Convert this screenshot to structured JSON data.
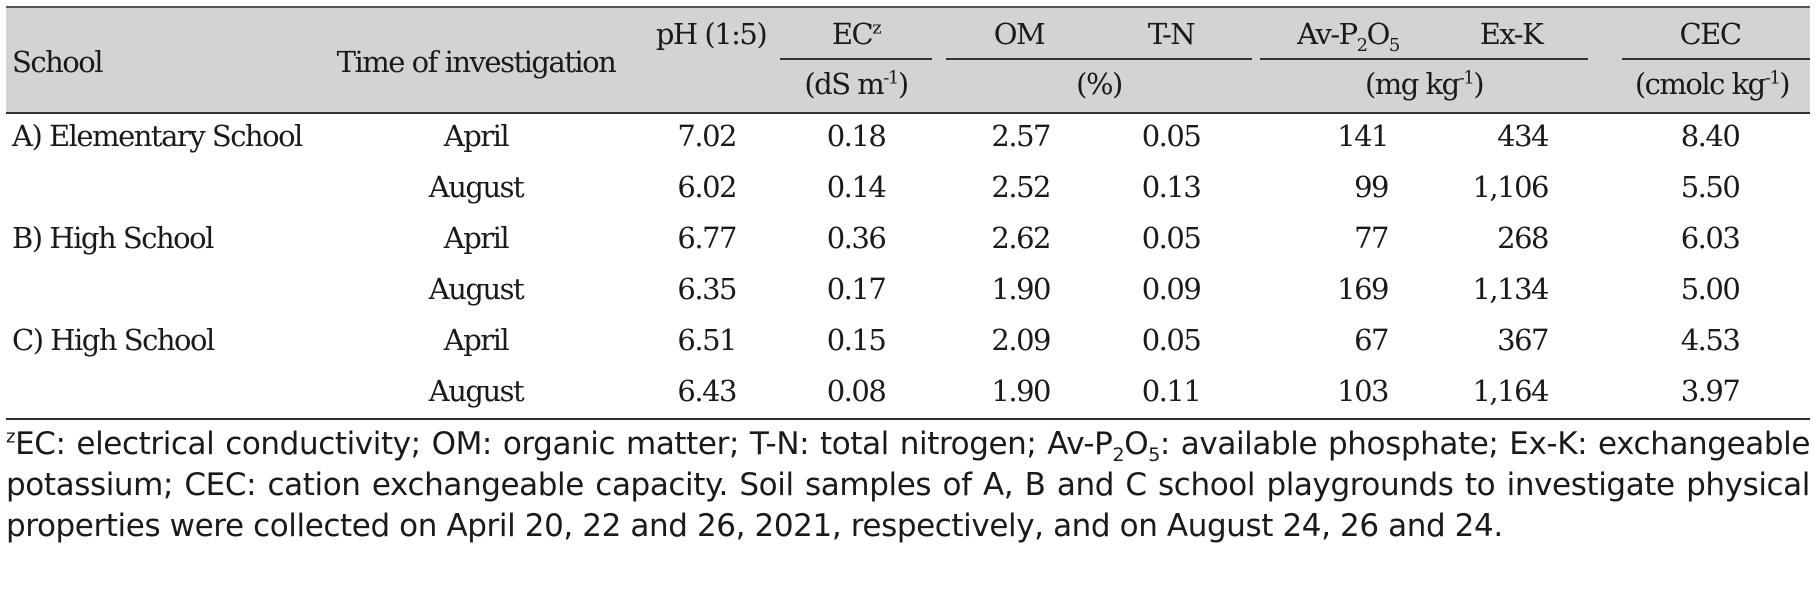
{
  "table": {
    "headers": {
      "school": "School",
      "time": "Time of investigation",
      "ph": "pH (1:5)",
      "ec_name": "EC",
      "ec_mark": "z",
      "ec_unit_a": "(dS m",
      "ec_unit_exp": "-1",
      "ec_unit_b": ")",
      "om": "OM",
      "tn": "T-N",
      "pct_unit": "(%)",
      "av_a": "Av-P",
      "av_sub1": "2",
      "av_b": "O",
      "av_sub2": "5",
      "exk": "Ex-K",
      "mg_unit_a": "(mg kg",
      "mg_unit_exp": "-1",
      "mg_unit_b": ")",
      "cec": "CEC",
      "cmol_unit_a": "(cmolc kg",
      "cmol_unit_exp": "-1",
      "cmol_unit_b": ")"
    },
    "rows": [
      {
        "school": "A) Elementary School",
        "time": "April",
        "ph": "7.02",
        "ec": "0.18",
        "om": "2.57",
        "tn": "0.05",
        "av": "141",
        "exk": "434",
        "cec": "8.40"
      },
      {
        "school": "",
        "time": "August",
        "ph": "6.02",
        "ec": "0.14",
        "om": "2.52",
        "tn": "0.13",
        "av": "99",
        "exk": "1,106",
        "cec": "5.50"
      },
      {
        "school": "B) High School",
        "time": "April",
        "ph": "6.77",
        "ec": "0.36",
        "om": "2.62",
        "tn": "0.05",
        "av": "77",
        "exk": "268",
        "cec": "6.03"
      },
      {
        "school": "",
        "time": "August",
        "ph": "6.35",
        "ec": "0.17",
        "om": "1.90",
        "tn": "0.09",
        "av": "169",
        "exk": "1,134",
        "cec": "5.00"
      },
      {
        "school": "C) High School",
        "time": "April",
        "ph": "6.51",
        "ec": "0.15",
        "om": "2.09",
        "tn": "0.05",
        "av": "67",
        "exk": "367",
        "cec": "4.53"
      },
      {
        "school": "",
        "time": "August",
        "ph": "6.43",
        "ec": "0.08",
        "om": "1.90",
        "tn": "0.11",
        "av": "103",
        "exk": "1,164",
        "cec": "3.97"
      }
    ]
  },
  "footnote": {
    "mark": "z",
    "text_a": "EC: electrical conductivity; OM: organic matter; T-N: total nitrogen; Av-P",
    "sub1": "2",
    "text_b": "O",
    "sub2": "5",
    "text_c": ": available phosphate; Ex-K: exchangeable potassium; CEC: cation exchangeable capacity. Soil samples of A, B and C school playgrounds to investigate physical properties were collected on April 20, 22 and 26, 2021, respectively, and on August 24, 26 and 24."
  }
}
